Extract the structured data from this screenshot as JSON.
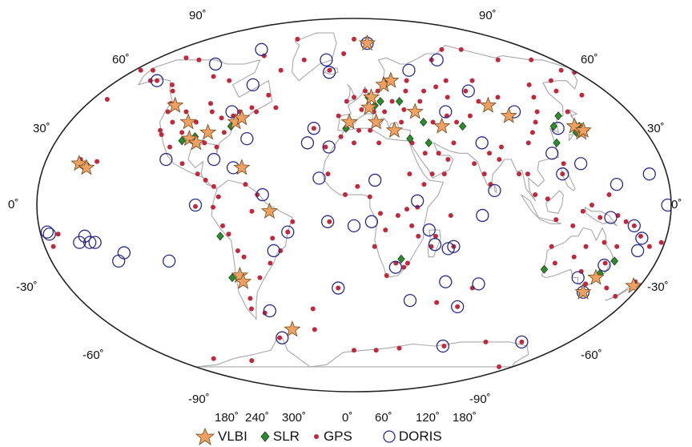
{
  "map": {
    "projection": "Winkel tripel / elliptical world map",
    "coastline_color": "#a8a8a8",
    "outline_color": "#222222",
    "latitude_ticks_left": [
      "90˚",
      "60˚",
      "30˚",
      "0˚",
      "-30˚",
      "-60˚",
      "-90˚"
    ],
    "latitude_ticks_right": [
      "90˚",
      "60˚",
      "30˚",
      "0˚",
      "-30˚",
      "-60˚",
      "-90˚"
    ],
    "longitude_ticks": [
      "180˚",
      "240˚",
      "300˚",
      "0˚",
      "60˚",
      "120˚",
      "180˚"
    ]
  },
  "legend": {
    "items": [
      {
        "label": "VLBI",
        "marker": "star",
        "color": "#f0a060"
      },
      {
        "label": "SLR",
        "marker": "diamond",
        "color": "#2e8b2e"
      },
      {
        "label": "GPS",
        "marker": "dot",
        "color": "#c0283c"
      },
      {
        "label": "DORIS",
        "marker": "ring",
        "color": "#2a2a8a"
      }
    ]
  },
  "stations": {
    "vlbi": [
      [
        -160,
        20
      ],
      [
        -155,
        18
      ],
      [
        -120,
        48
      ],
      [
        -105,
        40
      ],
      [
        -100,
        32
      ],
      [
        -95,
        30
      ],
      [
        -90,
        35
      ],
      [
        -75,
        40
      ],
      [
        -72,
        42
      ],
      [
        -65,
        18
      ],
      [
        -70,
        -34
      ],
      [
        -69,
        -37
      ],
      [
        -48,
        -3
      ],
      [
        -47,
        -60
      ],
      [
        15,
        78
      ],
      [
        10,
        47
      ],
      [
        12,
        52
      ],
      [
        22,
        58
      ],
      [
        28,
        60
      ],
      [
        -3,
        40
      ],
      [
        14,
        40
      ],
      [
        25,
        36
      ],
      [
        40,
        45
      ],
      [
        55,
        38
      ],
      [
        90,
        48
      ],
      [
        100,
        43
      ],
      [
        140,
        35
      ],
      [
        138,
        38
      ],
      [
        142,
        36
      ],
      [
        149,
        -35
      ],
      [
        147,
        -42
      ],
      [
        176,
        -39
      ]
    ],
    "slr": [
      [
        -155,
        19
      ],
      [
        -77,
        38
      ],
      [
        -104,
        31
      ],
      [
        -97,
        33
      ],
      [
        -65,
        18
      ],
      [
        -75,
        -35
      ],
      [
        -77,
        -15
      ],
      [
        10,
        52
      ],
      [
        14,
        48
      ],
      [
        18,
        50
      ],
      [
        27,
        60
      ],
      [
        31,
        50
      ],
      [
        34,
        32
      ],
      [
        -5,
        37
      ],
      [
        28,
        -26
      ],
      [
        44,
        40
      ],
      [
        68,
        38
      ],
      [
        122,
        30
      ],
      [
        125,
        38
      ],
      [
        132,
        43
      ],
      [
        137,
        35
      ],
      [
        139,
        36
      ],
      [
        141,
        38
      ],
      [
        155,
        -27
      ],
      [
        150,
        -33
      ],
      [
        147,
        -42
      ],
      [
        115,
        -31
      ],
      [
        45,
        30
      ]
    ],
    "gps": [
      [
        -170,
        -14
      ],
      [
        -175,
        -20
      ],
      [
        -150,
        60
      ],
      [
        -135,
        58
      ],
      [
        -124,
        49
      ],
      [
        -122,
        45
      ],
      [
        -120,
        36
      ],
      [
        -118,
        34
      ],
      [
        -115,
        40
      ],
      [
        -110,
        45
      ],
      [
        -106,
        35
      ],
      [
        -100,
        40
      ],
      [
        -97,
        49
      ],
      [
        -93,
        45
      ],
      [
        -90,
        30
      ],
      [
        -85,
        42
      ],
      [
        -82,
        28
      ],
      [
        -80,
        35
      ],
      [
        -78,
        43
      ],
      [
        -75,
        45
      ],
      [
        -71,
        42
      ],
      [
        -68,
        47
      ],
      [
        -64,
        45
      ],
      [
        -60,
        53
      ],
      [
        -52,
        47
      ],
      [
        -95,
        60
      ],
      [
        -110,
        62
      ],
      [
        -140,
        70
      ],
      [
        -85,
        72
      ],
      [
        -70,
        80
      ],
      [
        -45,
        70
      ],
      [
        -60,
        65
      ],
      [
        -100,
        20
      ],
      [
        -90,
        15
      ],
      [
        -80,
        9
      ],
      [
        -77,
        4
      ],
      [
        -75,
        -10
      ],
      [
        -58,
        -3
      ],
      [
        -47,
        -16
      ],
      [
        -43,
        -22
      ],
      [
        -50,
        -28
      ],
      [
        -58,
        -35
      ],
      [
        -65,
        -25
      ],
      [
        -68,
        -45
      ],
      [
        -70,
        -50
      ],
      [
        -62,
        -52
      ],
      [
        -38,
        -13
      ],
      [
        -35,
        -8
      ],
      [
        -80,
        -1
      ],
      [
        -155,
        60
      ],
      [
        -150,
        21
      ],
      [
        -160,
        22
      ],
      [
        -170,
        51
      ],
      [
        -175,
        65
      ],
      [
        -25,
        37
      ],
      [
        -17,
        28
      ],
      [
        -10,
        43
      ],
      [
        -5,
        50
      ],
      [
        0,
        52
      ],
      [
        5,
        46
      ],
      [
        8,
        55
      ],
      [
        13,
        45
      ],
      [
        17,
        55
      ],
      [
        20,
        45
      ],
      [
        24,
        60
      ],
      [
        26,
        50
      ],
      [
        30,
        40
      ],
      [
        33,
        46
      ],
      [
        37,
        55
      ],
      [
        40,
        60
      ],
      [
        45,
        50
      ],
      [
        50,
        55
      ],
      [
        60,
        57
      ],
      [
        65,
        40
      ],
      [
        70,
        60
      ],
      [
        75,
        43
      ],
      [
        80,
        55
      ],
      [
        85,
        50
      ],
      [
        90,
        60
      ],
      [
        100,
        52
      ],
      [
        105,
        30
      ],
      [
        110,
        35
      ],
      [
        115,
        40
      ],
      [
        120,
        45
      ],
      [
        125,
        52
      ],
      [
        130,
        58
      ],
      [
        140,
        45
      ],
      [
        145,
        55
      ],
      [
        150,
        60
      ],
      [
        160,
        53
      ],
      [
        170,
        65
      ],
      [
        178,
        64
      ],
      [
        -20,
        65
      ],
      [
        -15,
        15
      ],
      [
        -5,
        5
      ],
      [
        2,
        9
      ],
      [
        9,
        4
      ],
      [
        15,
        -4
      ],
      [
        18,
        -12
      ],
      [
        12,
        -20
      ],
      [
        25,
        -5
      ],
      [
        30,
        -2
      ],
      [
        36,
        -1
      ],
      [
        33,
        -10
      ],
      [
        37,
        -15
      ],
      [
        45,
        -20
      ],
      [
        47,
        -15
      ],
      [
        55,
        -5
      ],
      [
        32,
        15
      ],
      [
        40,
        10
      ],
      [
        45,
        15
      ],
      [
        50,
        25
      ],
      [
        52,
        15
      ],
      [
        55,
        22
      ],
      [
        60,
        30
      ],
      [
        70,
        20
      ],
      [
        75,
        15
      ],
      [
        78,
        10
      ],
      [
        80,
        25
      ],
      [
        85,
        22
      ],
      [
        88,
        28
      ],
      [
        95,
        15
      ],
      [
        100,
        15
      ],
      [
        103,
        5
      ],
      [
        110,
        3
      ],
      [
        115,
        -7
      ],
      [
        120,
        15
      ],
      [
        122,
        20
      ],
      [
        125,
        -10
      ],
      [
        130,
        -3
      ],
      [
        135,
        0
      ],
      [
        140,
        -6
      ],
      [
        145,
        5
      ],
      [
        150,
        -5
      ],
      [
        155,
        -8
      ],
      [
        160,
        -10
      ],
      [
        165,
        -15
      ],
      [
        172,
        -20
      ],
      [
        178,
        -18
      ],
      [
        115,
        -20
      ],
      [
        120,
        -28
      ],
      [
        130,
        -25
      ],
      [
        135,
        -20
      ],
      [
        138,
        -32
      ],
      [
        145,
        -38
      ],
      [
        150,
        -28
      ],
      [
        153,
        -20
      ],
      [
        145,
        -18
      ],
      [
        160,
        -40
      ],
      [
        170,
        -44
      ],
      [
        175,
        -37
      ],
      [
        30,
        -30
      ],
      [
        20,
        -34
      ],
      [
        25,
        -28
      ],
      [
        32,
        -28
      ],
      [
        58,
        -20
      ],
      [
        70,
        -49
      ],
      [
        75,
        -40
      ],
      [
        110,
        -66
      ],
      [
        140,
        -66
      ],
      [
        78,
        -68
      ],
      [
        40,
        -69
      ],
      [
        20,
        -70
      ],
      [
        0,
        -70
      ],
      [
        -60,
        -64
      ],
      [
        -30,
        -60
      ],
      [
        165,
        -78
      ],
      [
        -105,
        -75
      ],
      [
        -140,
        -74
      ],
      [
        55,
        -47
      ],
      [
        -10,
        -40
      ],
      [
        -14,
        -8
      ],
      [
        -28,
        -50
      ],
      [
        -68,
        -22
      ],
      [
        -72,
        -14
      ],
      [
        -55,
        5
      ],
      [
        -62,
        10
      ],
      [
        -85,
        12
      ],
      [
        -90,
        -0.7
      ],
      [
        -110,
        28
      ],
      [
        -130,
        55
      ],
      [
        -165,
        65
      ],
      [
        -155,
        71
      ],
      [
        15,
        30
      ],
      [
        10,
        36
      ],
      [
        3,
        36
      ],
      [
        0,
        30
      ],
      [
        -8,
        33
      ],
      [
        35,
        30
      ],
      [
        42,
        25
      ],
      [
        50,
        40
      ],
      [
        60,
        43
      ],
      [
        65,
        52
      ],
      [
        70,
        70
      ],
      [
        90,
        75
      ],
      [
        110,
        75
      ],
      [
        130,
        70
      ],
      [
        160,
        70
      ],
      [
        0,
        80
      ],
      [
        -10,
        73
      ]
    ],
    "doris": [
      [
        -176,
        -13
      ],
      [
        -159,
        -18
      ],
      [
        -155,
        -15
      ],
      [
        -140,
        -27
      ],
      [
        -135,
        -23
      ],
      [
        -110,
        -27
      ],
      [
        -175,
        -14
      ],
      [
        -150,
        -18
      ],
      [
        -150,
        60
      ],
      [
        -120,
        68
      ],
      [
        -95,
        75
      ],
      [
        -75,
        58
      ],
      [
        -80,
        45
      ],
      [
        -65,
        32
      ],
      [
        -82,
        22
      ],
      [
        -70,
        18
      ],
      [
        -110,
        22
      ],
      [
        -90,
        0
      ],
      [
        -52,
        5
      ],
      [
        -38,
        -13
      ],
      [
        -58,
        -51
      ],
      [
        -58,
        -64
      ],
      [
        -47,
        -22
      ],
      [
        -15,
        -8
      ],
      [
        -25,
        37
      ],
      [
        -28,
        30
      ],
      [
        -20,
        64
      ],
      [
        -25,
        70
      ],
      [
        -20,
        13
      ],
      [
        -15,
        28
      ],
      [
        0,
        -10
      ],
      [
        10,
        -8
      ],
      [
        12,
        12
      ],
      [
        36,
        2
      ],
      [
        43,
        -12
      ],
      [
        47,
        -19
      ],
      [
        58,
        -20
      ],
      [
        57,
        -37
      ],
      [
        70,
        -49
      ],
      [
        78,
        -38
      ],
      [
        37,
        -46
      ],
      [
        77,
        -68
      ],
      [
        140,
        -66
      ],
      [
        -10,
        -40
      ],
      [
        15,
        78
      ],
      [
        45,
        65
      ],
      [
        75,
        70
      ],
      [
        82,
        55
      ],
      [
        60,
        45
      ],
      [
        77,
        30
      ],
      [
        80,
        7
      ],
      [
        73,
        -5
      ],
      [
        105,
        45
      ],
      [
        117,
        25
      ],
      [
        127,
        37
      ],
      [
        132,
        20
      ],
      [
        150,
        10
      ],
      [
        160,
        -10
      ],
      [
        166,
        -22
      ],
      [
        166,
        -16
      ],
      [
        178,
        0
      ],
      [
        -153,
        -18
      ],
      [
        146,
        -6
      ],
      [
        150,
        -29
      ],
      [
        147,
        -42
      ],
      [
        138,
        -35
      ],
      [
        25,
        -30
      ],
      [
        55,
        -21
      ],
      [
        120,
        15
      ],
      [
        170,
        15
      ]
    ]
  }
}
